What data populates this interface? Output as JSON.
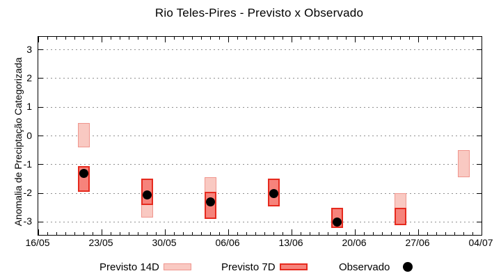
{
  "title": "Rio Teles-Pires - Previsto x Observado",
  "ylabel": "Anomalia de Preciptação Categorizada",
  "legend": [
    {
      "label": "Previsto 14D",
      "swatch": "range-bar-light"
    },
    {
      "label": "Previsto 7D",
      "swatch": "range-bar-dark"
    },
    {
      "label": "Observado",
      "swatch": "black-dot"
    }
  ],
  "colors": {
    "previsto14d_fill": "#f9c9c2",
    "previsto14d_border": "#f0958d",
    "previsto7d_fill": "#f6837b",
    "previsto7d_border": "#e62a1e",
    "observado": "#000000",
    "grid": "#8f8f8f",
    "frame": "#000000"
  },
  "chart_data": {
    "type": "bar",
    "subtype": "floating-range-bars-with-scatter",
    "title": "Rio Teles-Pires - Previsto x Observado",
    "xlabel": "",
    "ylabel": "Anomalia de Preciptação Categorizada",
    "ylim": [
      -3.45,
      3.45
    ],
    "yticks": [
      3,
      2,
      1,
      0,
      -1,
      -2,
      -3
    ],
    "grid": "dotted-horizontal",
    "x_total_days": 49,
    "xticks": [
      {
        "label": "16/05",
        "day": 0
      },
      {
        "label": "23/05",
        "day": 7
      },
      {
        "label": "30/05",
        "day": 14
      },
      {
        "label": "06/06",
        "day": 21
      },
      {
        "label": "13/06",
        "day": 28
      },
      {
        "label": "20/06",
        "day": 35
      },
      {
        "label": "27/06",
        "day": 42
      },
      {
        "label": "04/07",
        "day": 49
      }
    ],
    "minor_xtick_every_days": 1,
    "legend_position": "below-plot",
    "series": [
      {
        "name": "Previsto 14D",
        "kind": "range-bar",
        "points": [
          {
            "date": "21/05",
            "day": 5,
            "low": -0.4,
            "high": 0.45
          },
          {
            "date": "28/05",
            "day": 12,
            "low": -2.85,
            "high": -1.5
          },
          {
            "date": "04/06",
            "day": 19,
            "low": -2.9,
            "high": -1.45
          },
          {
            "date": "25/06",
            "day": 40,
            "low": -3.1,
            "high": -2.0
          },
          {
            "date": "02/07",
            "day": 47,
            "low": -1.45,
            "high": -0.5
          }
        ]
      },
      {
        "name": "Previsto 7D",
        "kind": "range-bar",
        "points": [
          {
            "date": "21/05",
            "day": 5,
            "low": -1.95,
            "high": -1.05
          },
          {
            "date": "28/05",
            "day": 12,
            "low": -2.4,
            "high": -1.5
          },
          {
            "date": "04/06",
            "day": 19,
            "low": -2.9,
            "high": -1.95
          },
          {
            "date": "11/06",
            "day": 26,
            "low": -2.45,
            "high": -1.5
          },
          {
            "date": "18/06",
            "day": 33,
            "low": -3.2,
            "high": -2.5
          },
          {
            "date": "25/06",
            "day": 40,
            "low": -3.1,
            "high": -2.5
          }
        ]
      },
      {
        "name": "Observado",
        "kind": "scatter",
        "points": [
          {
            "date": "21/05",
            "day": 5,
            "value": -1.3
          },
          {
            "date": "28/05",
            "day": 12,
            "value": -2.05
          },
          {
            "date": "04/06",
            "day": 19,
            "value": -2.3
          },
          {
            "date": "11/06",
            "day": 26,
            "value": -2.0
          },
          {
            "date": "18/06",
            "day": 33,
            "value": -3.0
          }
        ]
      }
    ]
  }
}
